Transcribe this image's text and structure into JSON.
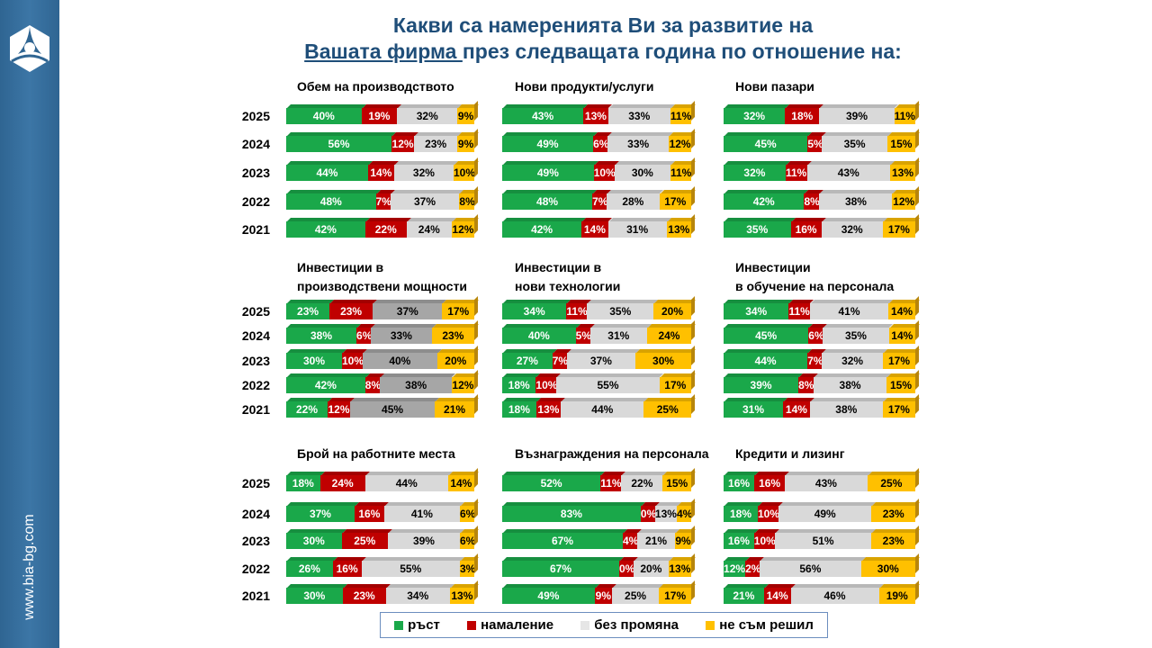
{
  "title": {
    "line1": "Какви са намеренията Ви за развитие на",
    "line2_underlined": "Вашата фирма ",
    "line2_rest": "през следващата година по отношение на:"
  },
  "sidebar": {
    "site": "www.bia-bg.com",
    "logo": "bia-logo"
  },
  "colors": {
    "green": "#1aa84a",
    "red": "#c00000",
    "gray": "#d9d9d9",
    "darkgray": "#a6a6a6",
    "yellow": "#ffc000"
  },
  "legend": [
    "ръст",
    "намаление",
    "без промяна",
    "не съм решил"
  ],
  "chart_data": [
    {
      "type": "bar",
      "orientation": "horizontal-stacked",
      "title": "Обем на производството",
      "categories": [
        "2025",
        "2024",
        "2023",
        "2022",
        "2021"
      ],
      "series": [
        {
          "name": "ръст",
          "values": [
            40,
            56,
            44,
            48,
            42
          ]
        },
        {
          "name": "намаление",
          "values": [
            19,
            12,
            14,
            7,
            22
          ]
        },
        {
          "name": "без промяна",
          "values": [
            32,
            23,
            32,
            37,
            24
          ]
        },
        {
          "name": "не съм решил",
          "values": [
            9,
            9,
            10,
            8,
            12
          ]
        }
      ]
    },
    {
      "type": "bar",
      "orientation": "horizontal-stacked",
      "title": "Нови продукти/услуги",
      "categories": [
        "2025",
        "2024",
        "2023",
        "2022",
        "2021"
      ],
      "series": [
        {
          "name": "ръст",
          "values": [
            43,
            49,
            49,
            48,
            42
          ]
        },
        {
          "name": "намаление",
          "values": [
            13,
            6,
            10,
            7,
            14
          ]
        },
        {
          "name": "без промяна",
          "values": [
            33,
            33,
            30,
            28,
            31
          ]
        },
        {
          "name": "не съм решил",
          "values": [
            11,
            12,
            11,
            17,
            13
          ]
        }
      ]
    },
    {
      "type": "bar",
      "orientation": "horizontal-stacked",
      "title": "Нови пазари",
      "categories": [
        "2025",
        "2024",
        "2023",
        "2022",
        "2021"
      ],
      "series": [
        {
          "name": "ръст",
          "values": [
            32,
            45,
            32,
            42,
            35
          ]
        },
        {
          "name": "намаление",
          "values": [
            18,
            5,
            11,
            8,
            16
          ]
        },
        {
          "name": "без промяна",
          "values": [
            39,
            35,
            43,
            38,
            32
          ]
        },
        {
          "name": "не съм решил",
          "values": [
            11,
            15,
            13,
            12,
            17
          ]
        }
      ]
    },
    {
      "type": "bar",
      "orientation": "horizontal-stacked",
      "title": "Инвестиции в\nпроизводствени мощности",
      "categories": [
        "2025",
        "2024",
        "2023",
        "2022",
        "2021"
      ],
      "gray_dark": true,
      "series": [
        {
          "name": "ръст",
          "values": [
            23,
            38,
            30,
            42,
            22
          ]
        },
        {
          "name": "намаление",
          "values": [
            23,
            6,
            10,
            8,
            12
          ]
        },
        {
          "name": "без промяна",
          "values": [
            37,
            33,
            40,
            38,
            45
          ]
        },
        {
          "name": "не съм решил",
          "values": [
            17,
            23,
            20,
            12,
            21
          ]
        }
      ]
    },
    {
      "type": "bar",
      "orientation": "horizontal-stacked",
      "title": "Инвестиции в\nнови технологии",
      "categories": [
        "2025",
        "2024",
        "2023",
        "2022",
        "2021"
      ],
      "series": [
        {
          "name": "ръст",
          "values": [
            34,
            40,
            27,
            18,
            18
          ]
        },
        {
          "name": "намаление",
          "values": [
            11,
            5,
            7,
            10,
            13
          ]
        },
        {
          "name": "без промяна",
          "values": [
            35,
            31,
            37,
            55,
            44
          ]
        },
        {
          "name": "не съм решил",
          "values": [
            20,
            24,
            30,
            17,
            25
          ]
        }
      ]
    },
    {
      "type": "bar",
      "orientation": "horizontal-stacked",
      "title": "Инвестиции\nв обучение на персонала",
      "categories": [
        "2025",
        "2024",
        "2023",
        "2022",
        "2021"
      ],
      "series": [
        {
          "name": "ръст",
          "values": [
            34,
            45,
            44,
            39,
            31
          ]
        },
        {
          "name": "намаление",
          "values": [
            11,
            6,
            7,
            8,
            14
          ]
        },
        {
          "name": "без промяна",
          "values": [
            41,
            35,
            32,
            38,
            38
          ]
        },
        {
          "name": "не съм решил",
          "values": [
            14,
            14,
            17,
            15,
            17
          ]
        }
      ]
    },
    {
      "type": "bar",
      "orientation": "horizontal-stacked",
      "title": "Брой на работните места",
      "categories": [
        "2025",
        "2024",
        "2023",
        "2022",
        "2021"
      ],
      "series": [
        {
          "name": "ръст",
          "values": [
            18,
            37,
            30,
            26,
            30
          ]
        },
        {
          "name": "намаление",
          "values": [
            24,
            16,
            25,
            16,
            23
          ]
        },
        {
          "name": "без промяна",
          "values": [
            44,
            41,
            39,
            55,
            34
          ]
        },
        {
          "name": "не съм решил",
          "values": [
            14,
            6,
            6,
            3,
            13
          ]
        }
      ]
    },
    {
      "type": "bar",
      "orientation": "horizontal-stacked",
      "title": "Възнаграждения на персонала",
      "categories": [
        "2025",
        "2024",
        "2023",
        "2022",
        "2021"
      ],
      "series": [
        {
          "name": "ръст",
          "values": [
            52,
            83,
            67,
            67,
            49
          ]
        },
        {
          "name": "намаление",
          "values": [
            11,
            0,
            4,
            0,
            9
          ]
        },
        {
          "name": "без промяна",
          "values": [
            22,
            13,
            21,
            20,
            25
          ]
        },
        {
          "name": "не съм решил",
          "values": [
            15,
            4,
            9,
            13,
            17
          ]
        }
      ]
    },
    {
      "type": "bar",
      "orientation": "horizontal-stacked",
      "title": "Кредити и лизинг",
      "categories": [
        "2025",
        "2024",
        "2023",
        "2022",
        "2021"
      ],
      "series": [
        {
          "name": "ръст",
          "values": [
            16,
            18,
            16,
            12,
            21
          ]
        },
        {
          "name": "намаление",
          "values": [
            16,
            10,
            10,
            2,
            14
          ]
        },
        {
          "name": "без промяна",
          "values": [
            43,
            49,
            51,
            56,
            46
          ]
        },
        {
          "name": "не съм решил",
          "values": [
            25,
            23,
            23,
            30,
            19
          ]
        }
      ]
    }
  ]
}
